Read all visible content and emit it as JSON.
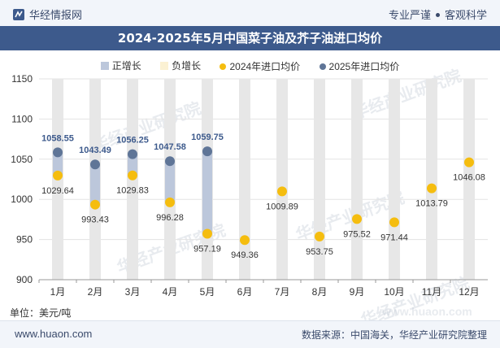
{
  "header": {
    "brand": "华经情报网",
    "slogan_left": "专业严谨",
    "slogan_right": "客观科学"
  },
  "title": "2024-2025年5月中国菜子油及芥子油进口均价",
  "legend": {
    "pos": "正增长",
    "neg": "负增长",
    "s2024": "2024年进口均价",
    "s2025": "2025年进口均价"
  },
  "colors": {
    "pos": "#bcc7db",
    "neg": "#fbf1d3",
    "s2024": "#f5bd0f",
    "s2025": "#5f7597",
    "column": "#e7e7e7",
    "grid": "#e3e3e3"
  },
  "watermark": "华经产业研究院",
  "watermark_url": "www.huaon.com",
  "unit": "单位：美元/吨",
  "footer": {
    "site": "www.huaon.com",
    "source": "数据来源：中国海关，华经产业研究院整理"
  },
  "chart_data": {
    "type": "scatter",
    "title": "2024-2025年5月中国菜子油及芥子油进口均价",
    "xlabel": "",
    "ylabel": "美元/吨",
    "ylim": [
      900,
      1150
    ],
    "yticks": [
      900,
      950,
      1000,
      1050,
      1100,
      1150
    ],
    "categories": [
      "1月",
      "2月",
      "3月",
      "4月",
      "5月",
      "6月",
      "7月",
      "8月",
      "9月",
      "10月",
      "11月",
      "12月"
    ],
    "series": [
      {
        "name": "2024年进口均价",
        "values": [
          1029.64,
          993.43,
          1029.83,
          996.28,
          957.19,
          949.36,
          1009.89,
          953.75,
          975.52,
          971.44,
          1013.79,
          1046.08
        ]
      },
      {
        "name": "2025年进口均价",
        "values": [
          1058.55,
          1043.49,
          1056.25,
          1047.58,
          1059.75,
          null,
          null,
          null,
          null,
          null,
          null,
          null
        ]
      }
    ],
    "labels_2024": [
      "1029.64",
      "993.43",
      "1029.83",
      "996.28",
      "957.19",
      "949.36",
      "1009.89",
      "953.75",
      "975.52",
      "971.44",
      "1013.79",
      "1046.08"
    ],
    "labels_2025": [
      "1058.55",
      "1043.49",
      "1056.25",
      "1047.58",
      "1059.75"
    ],
    "label_2024_side": [
      "below",
      "below",
      "below",
      "below",
      "below",
      "below",
      "below",
      "below",
      "below",
      "below",
      "below",
      "below"
    ]
  }
}
